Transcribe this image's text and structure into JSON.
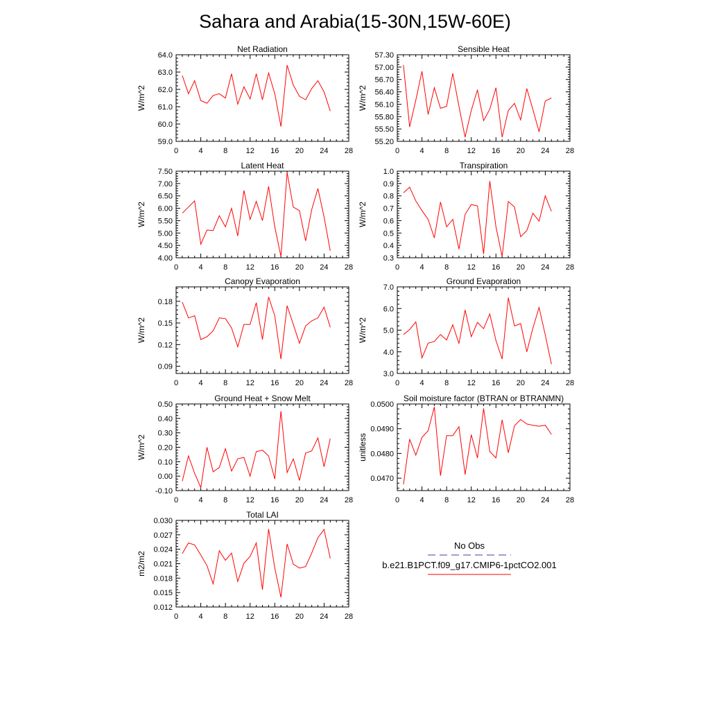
{
  "figure": {
    "title": "Sahara and Arabia(15-30N,15W-60E)"
  },
  "legend": {
    "entries": [
      {
        "label": "No Obs",
        "color": "#3f3f9f",
        "dash": true
      },
      {
        "label": "b.e21.B1PCT.f09_g17.CMIP6-1pctCO2.001",
        "color": "#ff0000",
        "dash": false
      }
    ]
  },
  "chart_data": [
    {
      "type": "line",
      "title": "Net Radiation",
      "xlabel": "",
      "ylabel": "W/m^2",
      "xlim": [
        0,
        28
      ],
      "ylim": [
        59.0,
        64.0
      ],
      "xticks": [
        0,
        4,
        8,
        12,
        16,
        20,
        24,
        28
      ],
      "yticks": [
        59.0,
        60.0,
        61.0,
        62.0,
        63.0,
        64.0
      ],
      "ytick_labels": [
        "59.0",
        "60.0",
        "61.0",
        "62.0",
        "63.0",
        "64.0"
      ],
      "x": [
        1,
        2,
        3,
        4,
        5,
        6,
        7,
        8,
        9,
        10,
        11,
        12,
        13,
        14,
        15,
        16,
        17,
        18,
        19,
        20,
        21,
        22,
        23,
        24,
        25
      ],
      "series": [
        {
          "color": "#ff0000",
          "values": [
            62.8,
            61.75,
            62.5,
            61.35,
            61.2,
            61.65,
            61.75,
            61.5,
            62.9,
            61.15,
            62.15,
            61.45,
            62.9,
            61.4,
            62.95,
            61.75,
            59.85,
            63.4,
            62.25,
            61.6,
            61.4,
            62.05,
            62.5,
            61.85,
            60.75
          ]
        }
      ]
    },
    {
      "type": "line",
      "title": "Sensible Heat",
      "xlabel": "",
      "ylabel": "W/m^2",
      "xlim": [
        0,
        28
      ],
      "ylim": [
        55.2,
        57.3
      ],
      "xticks": [
        0,
        4,
        8,
        12,
        16,
        20,
        24,
        28
      ],
      "yticks": [
        55.2,
        55.5,
        55.8,
        56.1,
        56.4,
        56.7,
        57.0,
        57.3
      ],
      "ytick_labels": [
        "55.20",
        "55.50",
        "55.80",
        "56.10",
        "56.40",
        "56.70",
        "57.00",
        "57.30"
      ],
      "x": [
        1,
        2,
        3,
        4,
        5,
        6,
        7,
        8,
        9,
        10,
        11,
        12,
        13,
        14,
        15,
        16,
        17,
        18,
        19,
        20,
        21,
        22,
        23,
        24,
        25
      ],
      "series": [
        {
          "color": "#ff0000",
          "values": [
            57.05,
            55.55,
            56.2,
            56.9,
            55.85,
            56.5,
            56.0,
            56.05,
            56.85,
            56.05,
            55.3,
            55.95,
            56.45,
            55.7,
            55.98,
            56.5,
            55.3,
            55.95,
            56.12,
            55.72,
            56.48,
            55.97,
            55.43,
            56.18,
            56.25
          ]
        }
      ]
    },
    {
      "type": "line",
      "title": "Latent Heat",
      "xlabel": "",
      "ylabel": "W/m^2",
      "xlim": [
        0,
        28
      ],
      "ylim": [
        4.0,
        7.5
      ],
      "xticks": [
        0,
        4,
        8,
        12,
        16,
        20,
        24,
        28
      ],
      "yticks": [
        4.0,
        4.5,
        5.0,
        5.5,
        6.0,
        6.5,
        7.0,
        7.5
      ],
      "ytick_labels": [
        "4.00",
        "4.50",
        "5.00",
        "5.50",
        "6.00",
        "6.50",
        "7.00",
        "7.50"
      ],
      "x": [
        1,
        2,
        3,
        4,
        5,
        6,
        7,
        8,
        9,
        10,
        11,
        12,
        13,
        14,
        15,
        16,
        17,
        18,
        19,
        20,
        21,
        22,
        23,
        24,
        25
      ],
      "series": [
        {
          "color": "#ff0000",
          "values": [
            5.8,
            6.05,
            6.3,
            4.55,
            5.12,
            5.1,
            5.7,
            5.25,
            6.0,
            4.88,
            6.72,
            5.55,
            6.28,
            5.5,
            6.88,
            5.25,
            4.05,
            7.45,
            6.05,
            5.9,
            4.68,
            5.95,
            6.8,
            5.65,
            4.28
          ]
        }
      ]
    },
    {
      "type": "line",
      "title": "Transpiration",
      "xlabel": "",
      "ylabel": "W/m^2",
      "xlim": [
        0,
        28
      ],
      "ylim": [
        0.3,
        1.0
      ],
      "xticks": [
        0,
        4,
        8,
        12,
        16,
        20,
        24,
        28
      ],
      "yticks": [
        0.3,
        0.4,
        0.5,
        0.6,
        0.7,
        0.8,
        0.9,
        1.0
      ],
      "ytick_labels": [
        "0.3",
        "0.4",
        "0.5",
        "0.6",
        "0.7",
        "0.8",
        "0.9",
        "1.0"
      ],
      "x": [
        1,
        2,
        3,
        4,
        5,
        6,
        7,
        8,
        9,
        10,
        11,
        12,
        13,
        14,
        15,
        16,
        17,
        18,
        19,
        20,
        21,
        22,
        23,
        24,
        25
      ],
      "series": [
        {
          "color": "#ff0000",
          "values": [
            0.825,
            0.87,
            0.76,
            0.68,
            0.61,
            0.46,
            0.75,
            0.55,
            0.61,
            0.37,
            0.65,
            0.73,
            0.72,
            0.33,
            0.92,
            0.55,
            0.31,
            0.755,
            0.71,
            0.47,
            0.52,
            0.66,
            0.595,
            0.8,
            0.675
          ]
        }
      ]
    },
    {
      "type": "line",
      "title": "Canopy Evaporation",
      "xlabel": "",
      "ylabel": "W/m^2",
      "xlim": [
        0,
        28
      ],
      "ylim": [
        0.08,
        0.2
      ],
      "xticks": [
        0,
        4,
        8,
        12,
        16,
        20,
        24,
        28
      ],
      "yticks": [
        0.09,
        0.12,
        0.15,
        0.18
      ],
      "ytick_labels": [
        "0.09",
        "0.12",
        "0.15",
        "0.18"
      ],
      "x": [
        1,
        2,
        3,
        4,
        5,
        6,
        7,
        8,
        9,
        10,
        11,
        12,
        13,
        14,
        15,
        16,
        17,
        18,
        19,
        20,
        21,
        22,
        23,
        24,
        25
      ],
      "series": [
        {
          "color": "#ff0000",
          "values": [
            0.179,
            0.157,
            0.16,
            0.127,
            0.131,
            0.139,
            0.157,
            0.156,
            0.143,
            0.117,
            0.148,
            0.148,
            0.178,
            0.127,
            0.186,
            0.16,
            0.1,
            0.174,
            0.148,
            0.122,
            0.146,
            0.153,
            0.157,
            0.172,
            0.144
          ]
        }
      ]
    },
    {
      "type": "line",
      "title": "Ground Evaporation",
      "xlabel": "",
      "ylabel": "W/m^2",
      "xlim": [
        0,
        28
      ],
      "ylim": [
        3.0,
        7.0
      ],
      "xticks": [
        0,
        4,
        8,
        12,
        16,
        20,
        24,
        28
      ],
      "yticks": [
        3.0,
        4.0,
        5.0,
        6.0,
        7.0
      ],
      "ytick_labels": [
        "3.0",
        "4.0",
        "5.0",
        "6.0",
        "7.0"
      ],
      "x": [
        1,
        2,
        3,
        4,
        5,
        6,
        7,
        8,
        9,
        10,
        11,
        12,
        13,
        14,
        15,
        16,
        17,
        18,
        19,
        20,
        21,
        22,
        23,
        24,
        25
      ],
      "series": [
        {
          "color": "#ff0000",
          "values": [
            4.8,
            5.03,
            5.38,
            3.72,
            4.4,
            4.48,
            4.8,
            4.55,
            5.25,
            4.38,
            5.93,
            4.7,
            5.36,
            5.07,
            5.75,
            4.52,
            3.67,
            6.5,
            5.2,
            5.3,
            4.0,
            5.1,
            6.05,
            4.78,
            3.43
          ]
        }
      ]
    },
    {
      "type": "line",
      "title": "Ground Heat + Snow Melt",
      "xlabel": "",
      "ylabel": "W/m^2",
      "xlim": [
        0,
        28
      ],
      "ylim": [
        -0.1,
        0.5
      ],
      "xticks": [
        0,
        4,
        8,
        12,
        16,
        20,
        24,
        28
      ],
      "yticks": [
        -0.1,
        0.0,
        0.1,
        0.2,
        0.3,
        0.4,
        0.5
      ],
      "ytick_labels": [
        "-0.10",
        "0.00",
        "0.10",
        "0.20",
        "0.30",
        "0.40",
        "0.50"
      ],
      "x": [
        1,
        2,
        3,
        4,
        5,
        6,
        7,
        8,
        9,
        10,
        11,
        12,
        13,
        14,
        15,
        16,
        17,
        18,
        19,
        20,
        21,
        22,
        23,
        24,
        25
      ],
      "series": [
        {
          "color": "#ff0000",
          "values": [
            -0.035,
            0.14,
            0.02,
            -0.08,
            0.2,
            0.03,
            0.06,
            0.19,
            0.035,
            0.12,
            0.13,
            0.0,
            0.17,
            0.18,
            0.14,
            -0.02,
            0.45,
            0.025,
            0.12,
            -0.03,
            0.16,
            0.175,
            0.265,
            0.065,
            0.26
          ]
        }
      ]
    },
    {
      "type": "line",
      "title": "Soil moisture factor (BTRAN or BTRANMN)",
      "xlabel": "",
      "ylabel": "unitless",
      "xlim": [
        0,
        28
      ],
      "ylim": [
        0.0465,
        0.05
      ],
      "xticks": [
        0,
        4,
        8,
        12,
        16,
        20,
        24,
        28
      ],
      "yticks": [
        0.047,
        0.048,
        0.049,
        0.05
      ],
      "ytick_labels": [
        "0.0470",
        "0.0480",
        "0.0490",
        "0.0500"
      ],
      "x": [
        1,
        2,
        3,
        4,
        5,
        6,
        7,
        8,
        9,
        10,
        11,
        12,
        13,
        14,
        15,
        16,
        17,
        18,
        19,
        20,
        21,
        22,
        23,
        24,
        25
      ],
      "series": [
        {
          "color": "#ff0000",
          "values": [
            0.04675,
            0.04858,
            0.04793,
            0.04865,
            0.04892,
            0.04988,
            0.0471,
            0.04872,
            0.04872,
            0.04908,
            0.04715,
            0.04876,
            0.04782,
            0.04982,
            0.04808,
            0.04782,
            0.04936,
            0.04803,
            0.04912,
            0.04937,
            0.04919,
            0.04914,
            0.0491,
            0.04914,
            0.04877
          ]
        }
      ]
    },
    {
      "type": "line",
      "title": "Total LAI",
      "xlabel": "",
      "ylabel": "m2/m2",
      "xlim": [
        0,
        28
      ],
      "ylim": [
        0.012,
        0.03
      ],
      "xticks": [
        0,
        4,
        8,
        12,
        16,
        20,
        24,
        28
      ],
      "yticks": [
        0.012,
        0.015,
        0.018,
        0.021,
        0.024,
        0.027,
        0.03
      ],
      "ytick_labels": [
        "0.012",
        "0.015",
        "0.018",
        "0.021",
        "0.024",
        "0.027",
        "0.030"
      ],
      "x": [
        1,
        2,
        3,
        4,
        5,
        6,
        7,
        8,
        9,
        10,
        11,
        12,
        13,
        14,
        15,
        16,
        17,
        18,
        19,
        20,
        21,
        22,
        23,
        24,
        25
      ],
      "series": [
        {
          "color": "#ff0000",
          "values": [
            0.0231,
            0.0253,
            0.0249,
            0.0228,
            0.0206,
            0.0168,
            0.0237,
            0.0217,
            0.0232,
            0.0173,
            0.0211,
            0.0225,
            0.0253,
            0.0156,
            0.0282,
            0.0201,
            0.014,
            0.0251,
            0.0209,
            0.0201,
            0.0204,
            0.0232,
            0.0264,
            0.0281,
            0.0221
          ]
        }
      ]
    }
  ]
}
